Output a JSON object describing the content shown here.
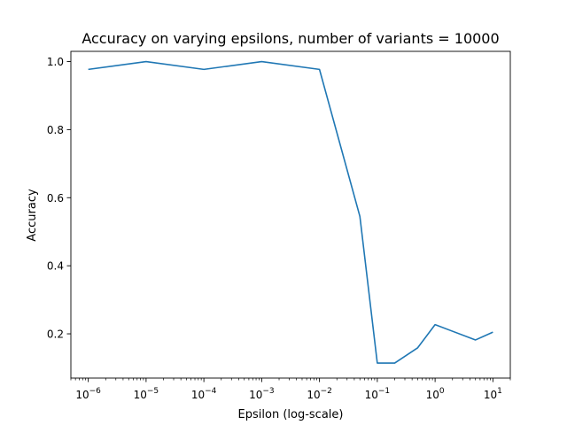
{
  "chart_data": {
    "type": "line",
    "title": "Accuracy on varying epsilons, number of variants = 10000",
    "xlabel": "Epsilon (log-scale)",
    "ylabel": "Accuracy",
    "xscale": "log",
    "grid": false,
    "legend": "none",
    "xlim": [
      5e-07,
      20
    ],
    "ylim": [
      0.07,
      1.03
    ],
    "x_major_ticks": [
      {
        "value": 1e-06,
        "exp": "−6"
      },
      {
        "value": 1e-05,
        "exp": "−5"
      },
      {
        "value": 0.0001,
        "exp": "−4"
      },
      {
        "value": 0.001,
        "exp": "−3"
      },
      {
        "value": 0.01,
        "exp": "−2"
      },
      {
        "value": 0.1,
        "exp": "−1"
      },
      {
        "value": 1,
        "exp": "0"
      },
      {
        "value": 10,
        "exp": "1"
      }
    ],
    "y_ticks": [
      {
        "value": 0.2,
        "label": "0.2"
      },
      {
        "value": 0.4,
        "label": "0.4"
      },
      {
        "value": 0.6,
        "label": "0.6"
      },
      {
        "value": 0.8,
        "label": "0.8"
      },
      {
        "value": 1.0,
        "label": "1.0"
      }
    ],
    "series": [
      {
        "color": "#1f77b4",
        "x": [
          1e-06,
          1e-05,
          0.0001,
          0.001,
          0.01,
          0.05,
          0.1,
          0.2,
          0.5,
          1,
          5,
          10
        ],
        "y": [
          0.977,
          1.0,
          0.977,
          1.0,
          0.977,
          0.545,
          0.114,
          0.114,
          0.159,
          0.227,
          0.182,
          0.205
        ]
      }
    ]
  }
}
